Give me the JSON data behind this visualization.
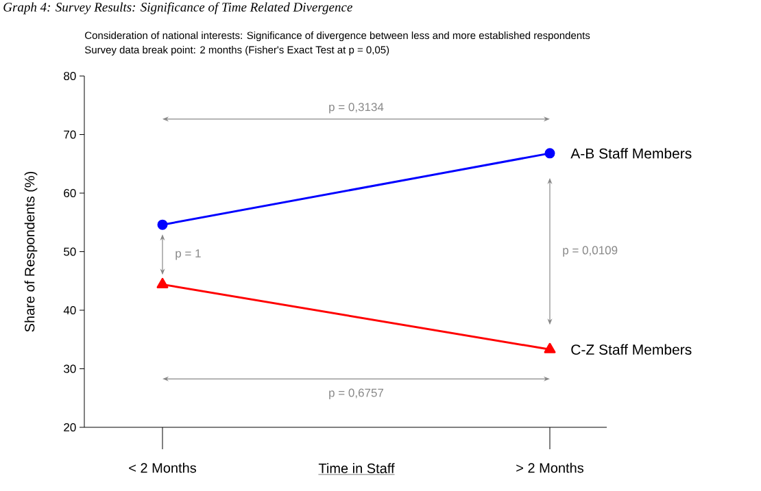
{
  "chart_data": {
    "type": "line",
    "title": "Consideration of national interests: Significance of divergence between less and more established respondents",
    "subtitle": "Survey data break point: 2 months (Fisher's Exact Test at p = 0,05)",
    "xlabel": "Time in Staff",
    "ylabel": "Share of Respondents (%)",
    "categories": [
      "< 2 Months",
      "> 2 Months"
    ],
    "series": [
      {
        "name": "A-B Staff Members",
        "color": "#0000ff",
        "marker": "circle",
        "values": [
          54.6,
          66.8
        ]
      },
      {
        "name": "C-Z Staff Members",
        "color": "#ff0000",
        "marker": "triangle",
        "values": [
          44.4,
          33.3
        ]
      }
    ],
    "ylim": [
      20,
      80
    ],
    "yticks": [
      20,
      30,
      40,
      50,
      60,
      70,
      80
    ],
    "legend": false,
    "grid": false,
    "annotations": [
      "Graph 4: Survey Results: Significance of Time Related Divergence",
      "p = 0,3134",
      "p = 1",
      "p = 0,0109",
      "p = 0,6757"
    ]
  }
}
